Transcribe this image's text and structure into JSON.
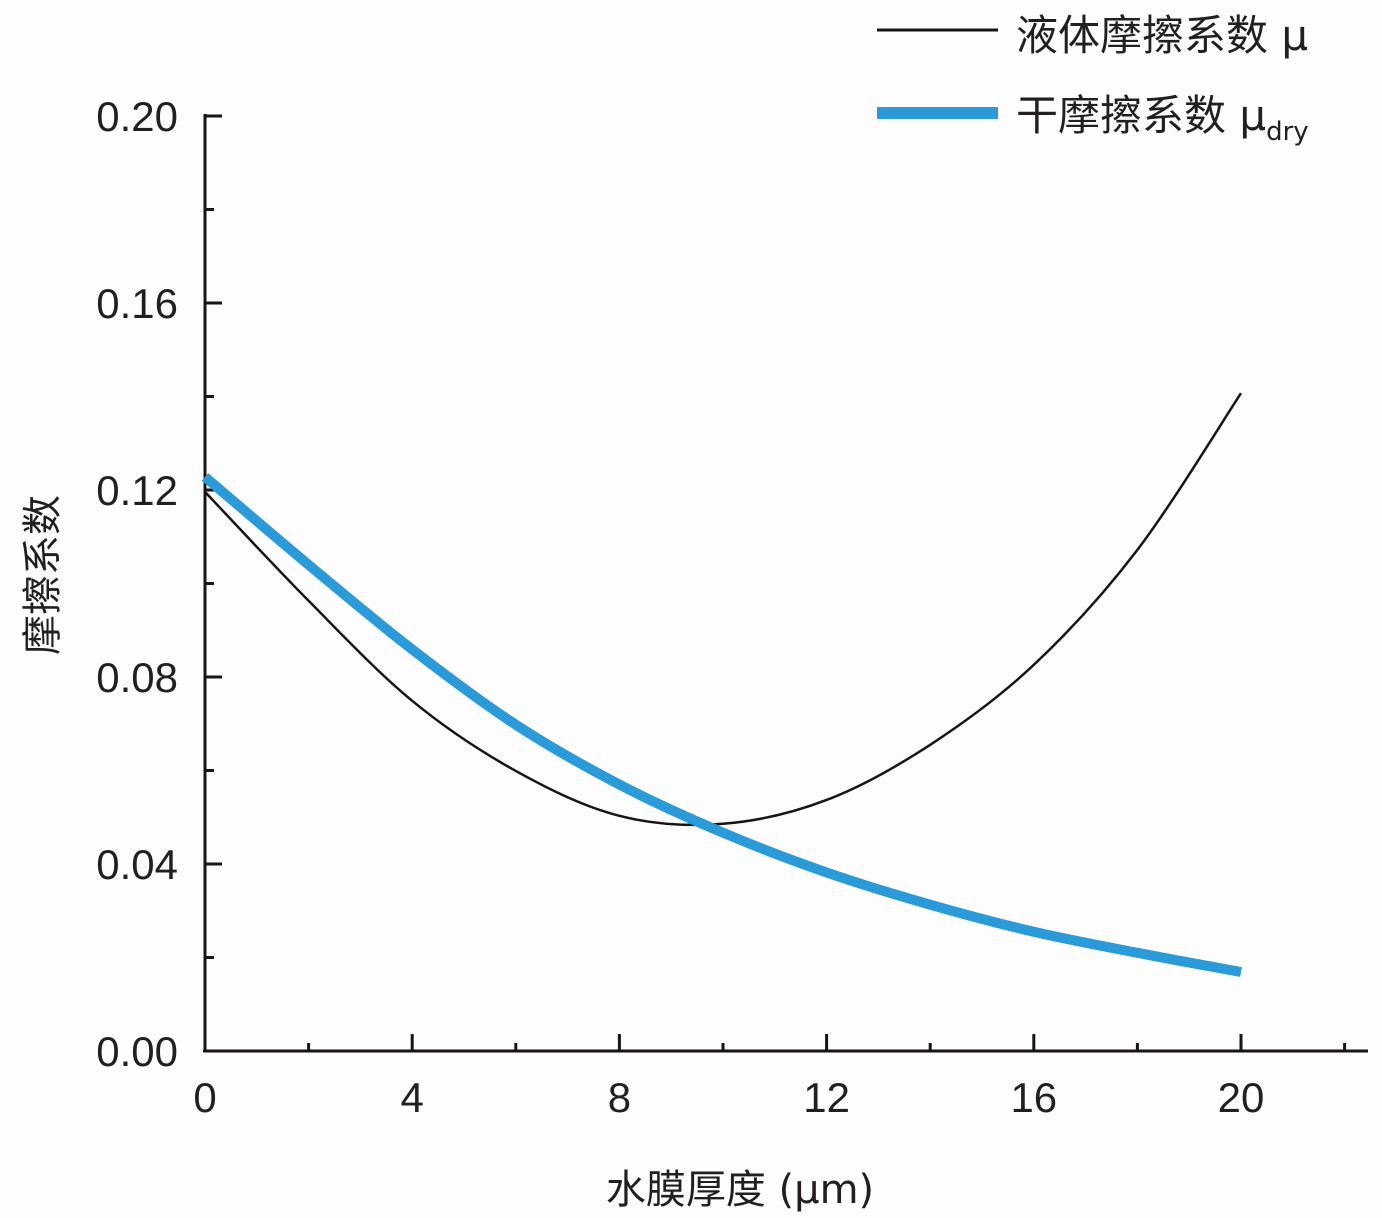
{
  "chart_data": {
    "type": "line",
    "title": "",
    "xlabel": "水膜厚度 (μm)",
    "ylabel": "摩擦系数",
    "xlim": [
      0,
      22
    ],
    "ylim": [
      0,
      0.2
    ],
    "x_ticks": [
      "0",
      "4",
      "8",
      "12",
      "16",
      "20"
    ],
    "y_ticks": [
      "0.00",
      "0.04",
      "0.08",
      "0.12",
      "0.16",
      "0.20"
    ],
    "grid": false,
    "legend_position": "top-right",
    "x": [
      0,
      2,
      4,
      6,
      8,
      10,
      12,
      14,
      16,
      18,
      20
    ],
    "series": [
      {
        "name": "液体摩擦系数 μ",
        "legend_label": "液体摩擦系数 μ",
        "color": "#1a1416",
        "line_width": 2.5,
        "values": [
          0.1196,
          0.0963,
          0.0749,
          0.0599,
          0.0503,
          0.0486,
          0.0537,
          0.0655,
          0.0826,
          0.1072,
          0.1407
        ]
      },
      {
        "name": "干摩擦系数 μdry",
        "legend_label": "干摩擦系数 μ",
        "legend_subscript": "dry",
        "color": "#2b9ad8",
        "line_width": 10,
        "values": [
          0.1228,
          0.104,
          0.0859,
          0.0698,
          0.057,
          0.0467,
          0.0382,
          0.0313,
          0.0255,
          0.021,
          0.0169
        ]
      }
    ]
  }
}
